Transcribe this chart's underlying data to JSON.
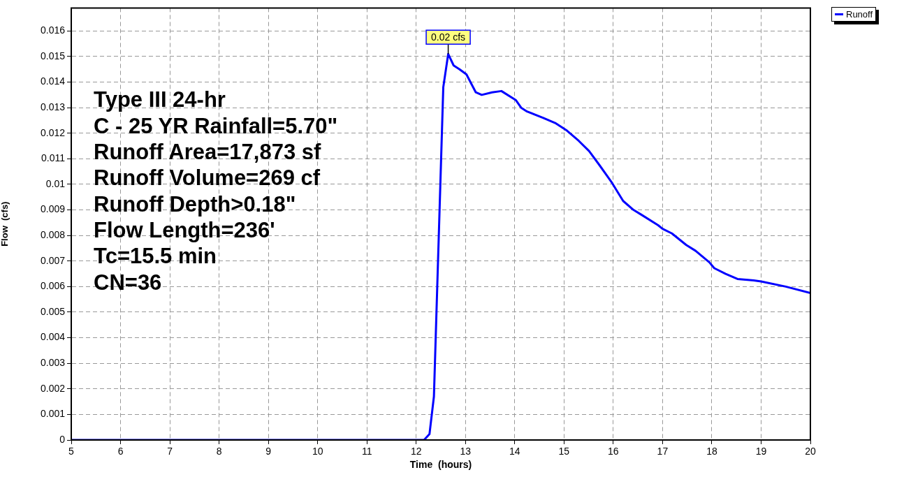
{
  "chart_data": {
    "type": "line",
    "xlabel": "Time  (hours)",
    "ylabel": "Flow  (cfs)",
    "x": [
      5,
      12.16,
      12.27,
      12.36,
      12.55,
      12.65,
      12.76,
      12.88,
      13.02,
      13.21,
      13.33,
      13.54,
      13.73,
      14.02,
      14.13,
      14.25,
      14.58,
      14.82,
      15.06,
      15.3,
      15.51,
      15.72,
      15.96,
      16.2,
      16.41,
      16.58,
      16.91,
      17.0,
      17.19,
      17.48,
      17.67,
      17.95,
      18.05,
      18.28,
      18.52,
      18.85,
      19.0,
      19.5,
      20
    ],
    "series": [
      {
        "name": "Runoff",
        "color": "#0000ff",
        "values": [
          0,
          0,
          0.00023,
          0.0017,
          0.0138,
          0.0151,
          0.01465,
          0.0145,
          0.0143,
          0.0136,
          0.0135,
          0.0136,
          0.01365,
          0.0133,
          0.013,
          0.01285,
          0.0126,
          0.0124,
          0.0121,
          0.0117,
          0.0113,
          0.01075,
          0.0101,
          0.00935,
          0.009,
          0.0088,
          0.0084,
          0.00826,
          0.00808,
          0.00763,
          0.0074,
          0.00695,
          0.00672,
          0.0065,
          0.0063,
          0.00624,
          0.0062,
          0.006,
          0.00575
        ]
      }
    ],
    "xlim": [
      5,
      20
    ],
    "xticks": [
      5,
      6,
      7,
      8,
      9,
      10,
      11,
      12,
      13,
      14,
      15,
      16,
      17,
      18,
      19,
      20
    ],
    "ylim": [
      0,
      0.0169
    ],
    "yticks": [
      0,
      0.001,
      0.002,
      0.003,
      0.004,
      0.005,
      0.006,
      0.007,
      0.008,
      0.009,
      0.01,
      0.011,
      0.012,
      0.013,
      0.014,
      0.015,
      0.016
    ],
    "grid": true,
    "legend": "top right",
    "marker": "none",
    "line_style": "solid",
    "annotations": [
      {
        "text": "0.02 cfs",
        "x": 12.65,
        "y": 0.0151
      },
      "Type III 24-hr",
      "C - 25 YR Rainfall=5.70\"",
      "Runoff Area=17,873 sf",
      "Runoff Volume=269 cf",
      "Runoff Depth>0.18\"",
      "Flow Length=236'",
      "Tc=15.5 min",
      "CN=36"
    ]
  }
}
